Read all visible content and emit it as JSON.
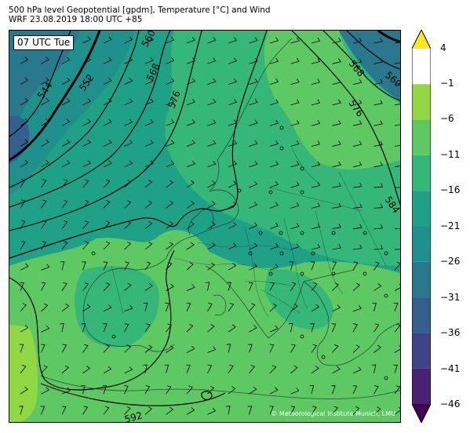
{
  "header": {
    "line1": "500 hPa level Geopotential [gpdm], Temperature [°C] and Wind",
    "line2": "WRF 23.08.2019 18:00 UTC +85"
  },
  "map": {
    "time_label": "07 UTC Tue",
    "credit": "© Meteorological Institute Munich, LMU",
    "contour_labels": [
      "544",
      "552",
      "560",
      "568",
      "576",
      "584",
      "592",
      "568",
      "576",
      "560"
    ]
  },
  "colorbar": {
    "ticks": [
      "4",
      "−1",
      "−6",
      "−11",
      "−16",
      "−21",
      "−26",
      "−31",
      "−36",
      "−41",
      "−46"
    ],
    "colors": [
      "#440154",
      "#482374",
      "#404387",
      "#345f8d",
      "#29788e",
      "#20908c",
      "#1fa187",
      "#35b779",
      "#5ec962",
      "#90d743",
      "#fde725"
    ]
  }
}
